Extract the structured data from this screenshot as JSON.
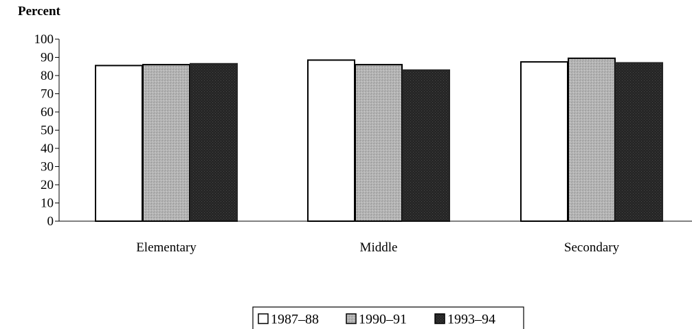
{
  "chart_data": {
    "type": "bar",
    "ylabel": "Percent",
    "title": "",
    "xlabel": "",
    "ylim": [
      0,
      100
    ],
    "yticks": [
      0,
      10,
      20,
      30,
      40,
      50,
      60,
      70,
      80,
      90,
      100
    ],
    "categories": [
      "Elementary",
      "Middle",
      "Secondary"
    ],
    "series": [
      {
        "name": "1987–88",
        "values": [
          85.5,
          88.5,
          87.5
        ],
        "color": "#ffffff"
      },
      {
        "name": "1990–91",
        "values": [
          86,
          86,
          89.5
        ],
        "color": "#b8b8b8"
      },
      {
        "name": "1993–94",
        "values": [
          86.5,
          83,
          87
        ],
        "color": "#262626"
      }
    ],
    "legend_position": "bottom-center",
    "grid": false
  }
}
